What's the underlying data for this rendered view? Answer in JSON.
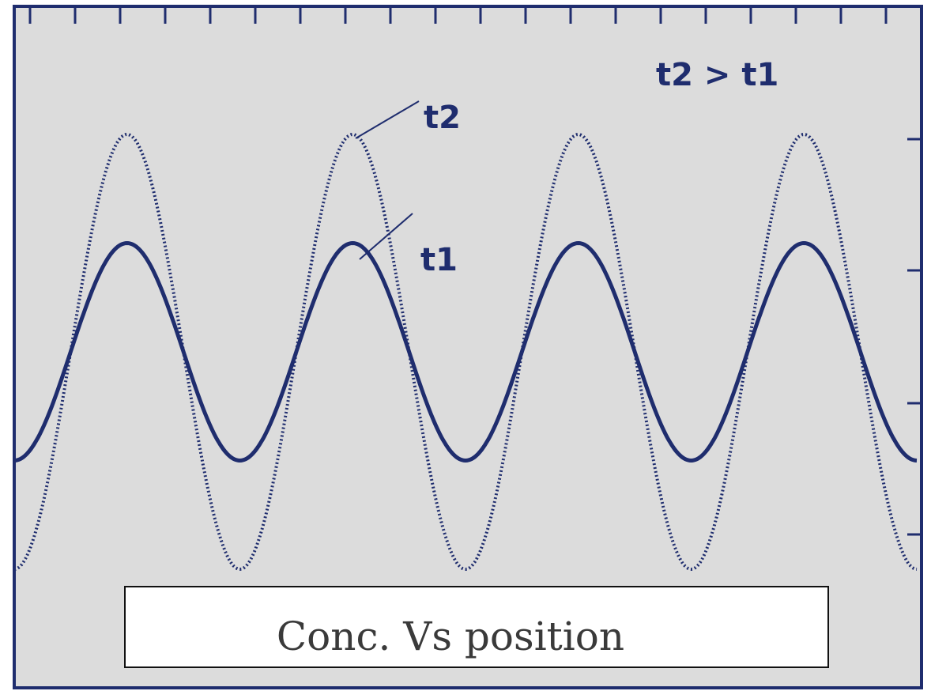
{
  "chart_data": {
    "type": "line",
    "title": "",
    "xlabel": "",
    "ylabel": "",
    "caption": "Conc. Vs position",
    "relation_label": "t2 > t1",
    "grid": false,
    "x_range": [
      0,
      4.0
    ],
    "y_range": [
      -1.1,
      1.1
    ],
    "series": [
      {
        "name": "t1",
        "style": "solid",
        "color": "#1f2d6e",
        "x": [
          0.0,
          0.25,
          0.5,
          0.75,
          1.0,
          1.25,
          1.5,
          1.75,
          2.0,
          2.25,
          2.5,
          2.75,
          3.0,
          3.25,
          3.5,
          3.75,
          4.0
        ],
        "values": [
          -0.5,
          0.5,
          0.5,
          -0.5,
          -0.5,
          0.5,
          0.5,
          -0.5,
          -0.5,
          0.5,
          0.5,
          -0.5,
          -0.5,
          0.5,
          0.5,
          -0.5,
          -0.5
        ]
      },
      {
        "name": "t2",
        "style": "dotted",
        "color": "#1f2d6e",
        "x": [
          0.0,
          0.25,
          0.5,
          0.75,
          1.0,
          1.25,
          1.5,
          1.75,
          2.0,
          2.25,
          2.5,
          2.75,
          3.0,
          3.25,
          3.5,
          3.75,
          4.0
        ],
        "values": [
          -1.0,
          1.0,
          1.0,
          -1.0,
          -1.0,
          1.0,
          1.0,
          -1.0,
          -1.0,
          1.0,
          1.0,
          -1.0,
          -1.0,
          1.0,
          1.0,
          -1.0,
          -1.0
        ]
      }
    ],
    "annotations": [
      {
        "text": "t2",
        "series": "t2"
      },
      {
        "text": "t1",
        "series": "t1"
      }
    ],
    "colors": {
      "background": "#dcdcdc",
      "frame": "#1f2d6e",
      "ink": "#1f2d6e"
    }
  }
}
